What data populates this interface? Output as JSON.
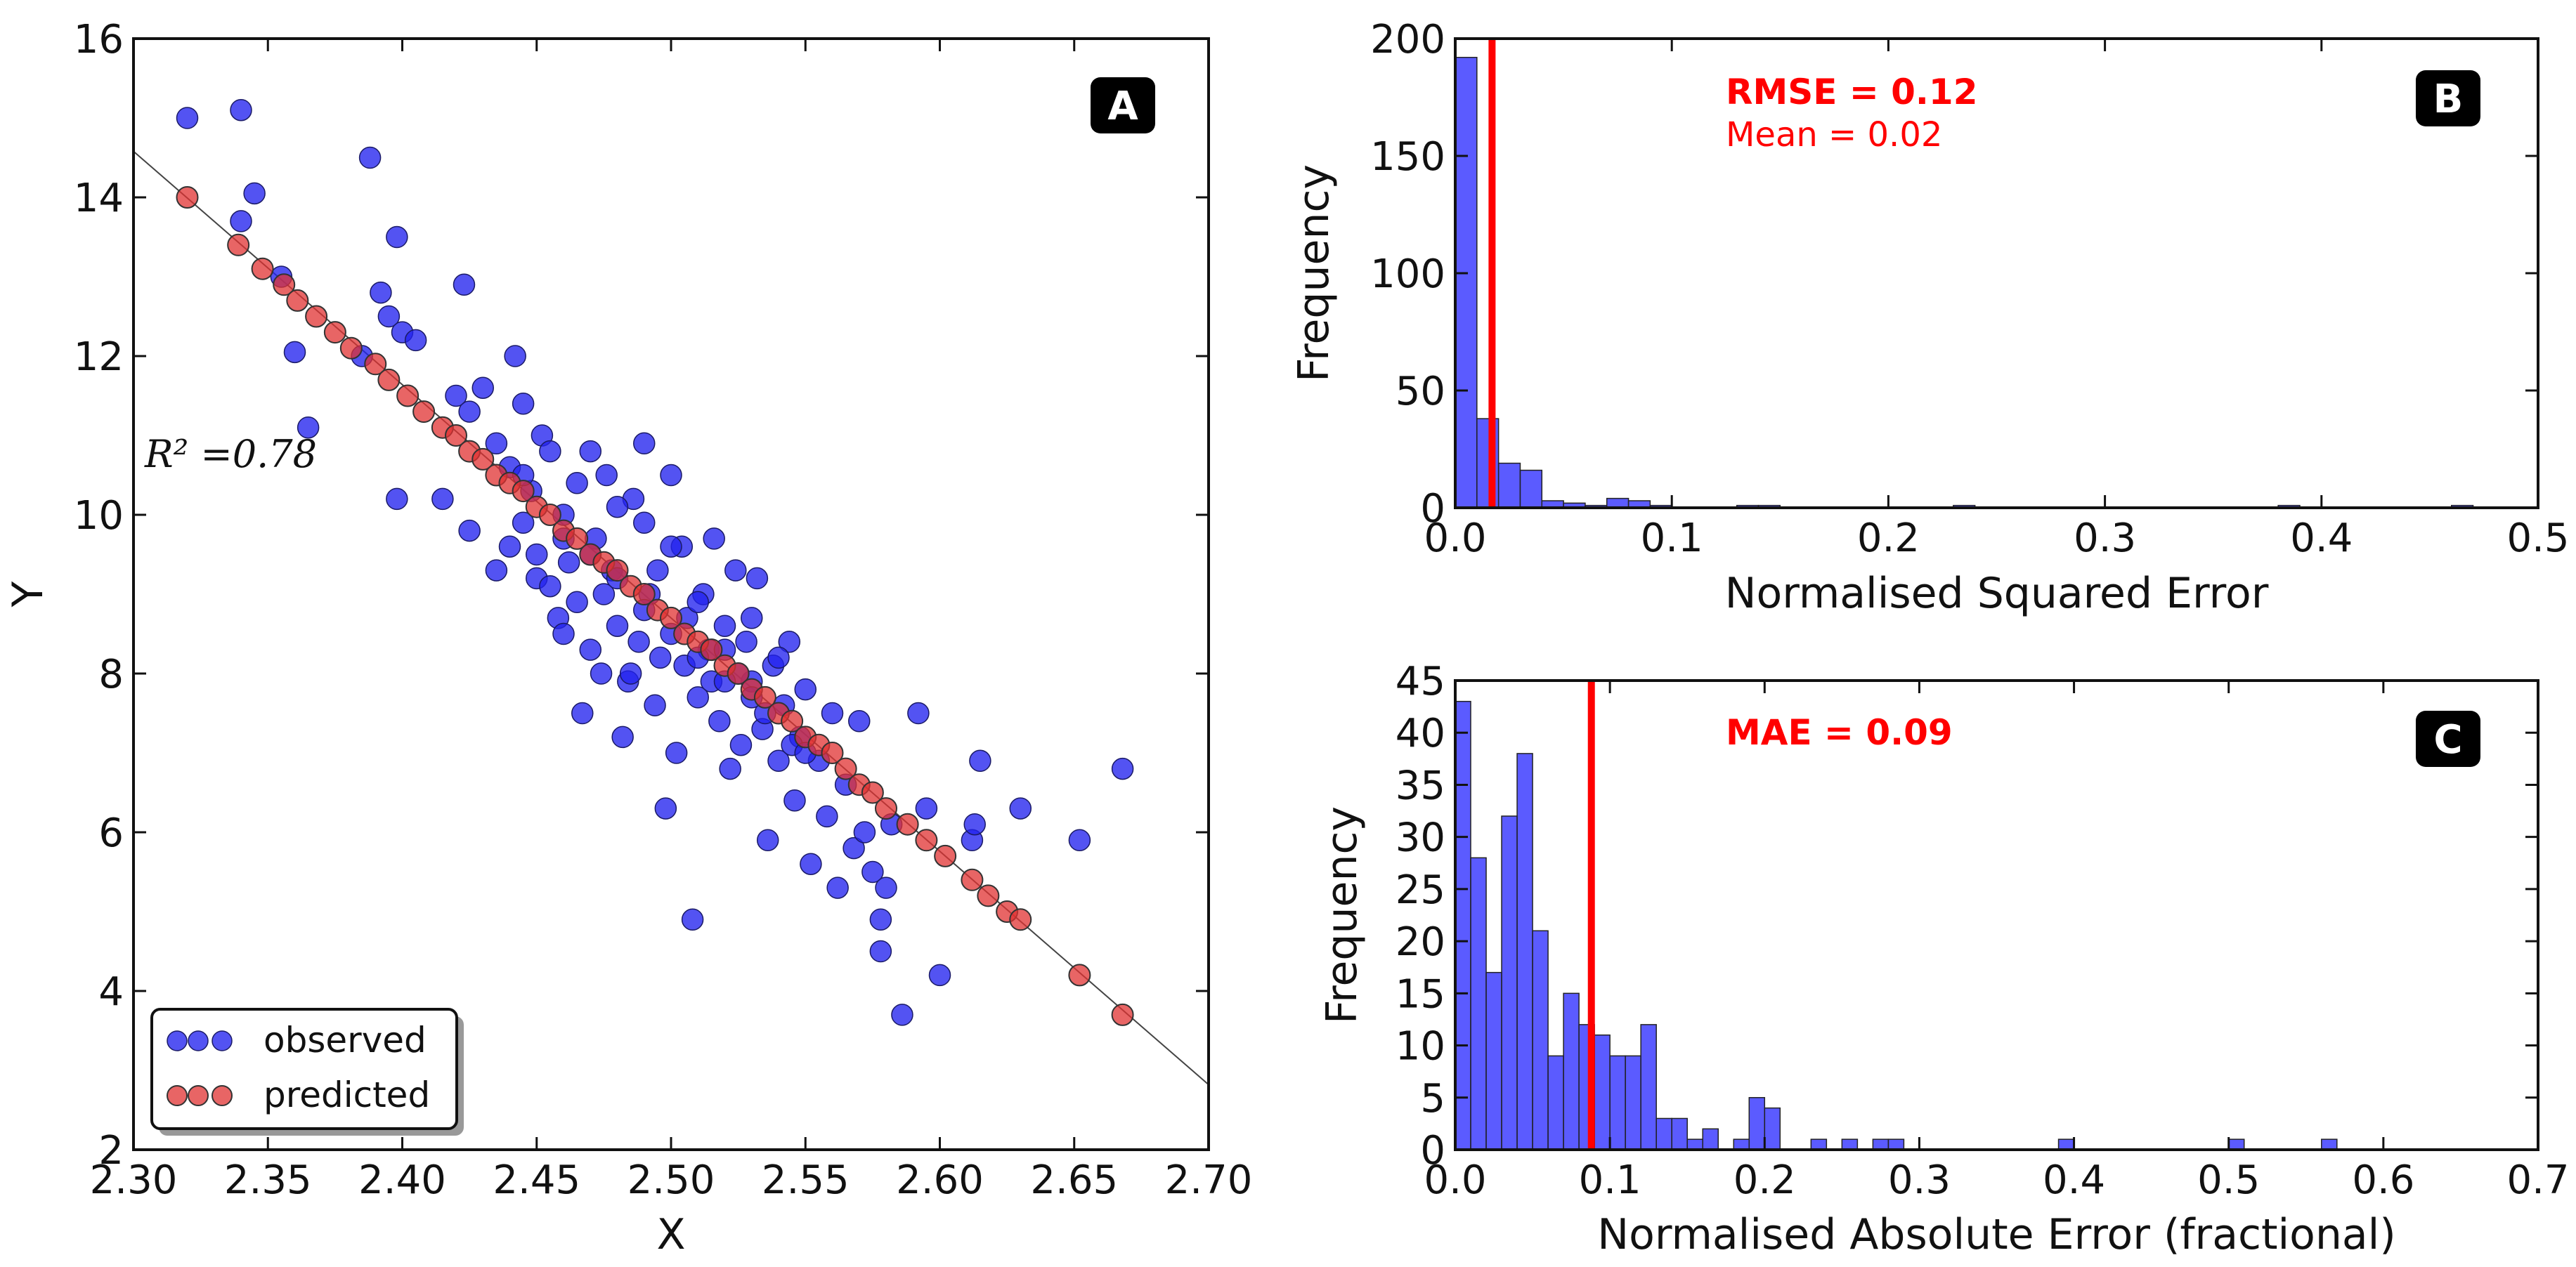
{
  "chart_data": [
    {
      "panel": "A",
      "type": "scatter",
      "xlabel": "X",
      "ylabel": "Y",
      "xlim": [
        2.3,
        2.7
      ],
      "ylim": [
        2,
        16
      ],
      "xticks": [
        "2.30",
        "2.35",
        "2.40",
        "2.45",
        "2.50",
        "2.55",
        "2.60",
        "2.65",
        "2.70"
      ],
      "yticks": [
        "2",
        "4",
        "6",
        "8",
        "10",
        "12",
        "14",
        "16"
      ],
      "r2_annotation": "R² =0.78",
      "legend": {
        "position": "bottom-left",
        "entries": [
          "observed",
          "predicted"
        ]
      },
      "fit_line": {
        "slope": -29.4,
        "intercept": 82.2
      },
      "series": [
        {
          "name": "observed",
          "color": "#2323ee",
          "points": [
            [
              2.32,
              15.0
            ],
            [
              2.34,
              15.1
            ],
            [
              2.345,
              14.05
            ],
            [
              2.34,
              13.7
            ],
            [
              2.355,
              13.0
            ],
            [
              2.36,
              12.05
            ],
            [
              2.365,
              11.1
            ],
            [
              2.385,
              12.0
            ],
            [
              2.388,
              14.5
            ],
            [
              2.392,
              12.8
            ],
            [
              2.395,
              12.5
            ],
            [
              2.398,
              13.5
            ],
            [
              2.4,
              12.3
            ],
            [
              2.405,
              12.2
            ],
            [
              2.398,
              10.2
            ],
            [
              2.415,
              10.2
            ],
            [
              2.42,
              11.5
            ],
            [
              2.423,
              12.9
            ],
            [
              2.425,
              11.3
            ],
            [
              2.43,
              11.6
            ],
            [
              2.425,
              9.8
            ],
            [
              2.435,
              9.3
            ],
            [
              2.44,
              10.6
            ],
            [
              2.442,
              12.0
            ],
            [
              2.445,
              11.4
            ],
            [
              2.448,
              10.3
            ],
            [
              2.45,
              9.2
            ],
            [
              2.452,
              11.0
            ],
            [
              2.455,
              10.8
            ],
            [
              2.458,
              8.7
            ],
            [
              2.46,
              10.0
            ],
            [
              2.462,
              9.4
            ],
            [
              2.465,
              10.4
            ],
            [
              2.467,
              7.5
            ],
            [
              2.47,
              10.8
            ],
            [
              2.472,
              9.7
            ],
            [
              2.474,
              8.0
            ],
            [
              2.476,
              10.5
            ],
            [
              2.478,
              9.3
            ],
            [
              2.48,
              8.6
            ],
            [
              2.482,
              7.2
            ],
            [
              2.484,
              7.9
            ],
            [
              2.486,
              10.2
            ],
            [
              2.488,
              8.4
            ],
            [
              2.49,
              10.9
            ],
            [
              2.492,
              9.0
            ],
            [
              2.494,
              7.6
            ],
            [
              2.496,
              8.2
            ],
            [
              2.498,
              6.3
            ],
            [
              2.5,
              10.5
            ],
            [
              2.502,
              7.0
            ],
            [
              2.504,
              9.6
            ],
            [
              2.506,
              8.7
            ],
            [
              2.508,
              4.9
            ],
            [
              2.51,
              7.7
            ],
            [
              2.512,
              9.0
            ],
            [
              2.514,
              8.3
            ],
            [
              2.516,
              9.7
            ],
            [
              2.518,
              7.4
            ],
            [
              2.52,
              8.6
            ],
            [
              2.522,
              6.8
            ],
            [
              2.524,
              9.3
            ],
            [
              2.526,
              7.1
            ],
            [
              2.528,
              8.4
            ],
            [
              2.53,
              7.9
            ],
            [
              2.532,
              9.2
            ],
            [
              2.534,
              7.3
            ],
            [
              2.536,
              5.9
            ],
            [
              2.538,
              8.1
            ],
            [
              2.54,
              6.9
            ],
            [
              2.542,
              7.6
            ],
            [
              2.544,
              8.4
            ],
            [
              2.546,
              6.4
            ],
            [
              2.548,
              7.2
            ],
            [
              2.55,
              7.8
            ],
            [
              2.552,
              5.6
            ],
            [
              2.555,
              6.9
            ],
            [
              2.558,
              6.2
            ],
            [
              2.56,
              7.5
            ],
            [
              2.562,
              5.3
            ],
            [
              2.565,
              6.6
            ],
            [
              2.568,
              5.8
            ],
            [
              2.57,
              7.4
            ],
            [
              2.572,
              6.0
            ],
            [
              2.575,
              5.5
            ],
            [
              2.578,
              4.9
            ],
            [
              2.578,
              4.5
            ],
            [
              2.58,
              5.3
            ],
            [
              2.582,
              6.1
            ],
            [
              2.586,
              3.7
            ],
            [
              2.592,
              7.5
            ],
            [
              2.595,
              6.3
            ],
            [
              2.6,
              4.2
            ],
            [
              2.612,
              5.9
            ],
            [
              2.615,
              6.9
            ],
            [
              2.613,
              6.1
            ],
            [
              2.63,
              6.3
            ],
            [
              2.652,
              5.9
            ],
            [
              2.668,
              6.8
            ],
            [
              2.445,
              9.9
            ],
            [
              2.455,
              9.1
            ],
            [
              2.465,
              8.9
            ],
            [
              2.475,
              9.0
            ],
            [
              2.485,
              8.0
            ],
            [
              2.495,
              9.3
            ],
            [
              2.505,
              8.1
            ],
            [
              2.515,
              7.9
            ],
            [
              2.525,
              8.0
            ],
            [
              2.535,
              7.5
            ],
            [
              2.545,
              7.1
            ],
            [
              2.435,
              10.9
            ],
            [
              2.445,
              10.5
            ],
            [
              2.46,
              9.7
            ],
            [
              2.47,
              9.5
            ],
            [
              2.48,
              9.2
            ],
            [
              2.49,
              8.8
            ],
            [
              2.5,
              8.5
            ],
            [
              2.51,
              8.2
            ],
            [
              2.52,
              7.9
            ],
            [
              2.53,
              7.7
            ],
            [
              2.44,
              9.6
            ],
            [
              2.45,
              9.5
            ],
            [
              2.46,
              8.5
            ],
            [
              2.47,
              8.3
            ],
            [
              2.48,
              10.1
            ],
            [
              2.49,
              9.9
            ],
            [
              2.5,
              9.6
            ],
            [
              2.51,
              8.9
            ],
            [
              2.52,
              8.3
            ],
            [
              2.53,
              8.7
            ],
            [
              2.54,
              8.2
            ],
            [
              2.55,
              7.0
            ]
          ]
        },
        {
          "name": "predicted",
          "color": "#e03232",
          "points": [
            [
              2.32,
              14.0
            ],
            [
              2.339,
              13.4
            ],
            [
              2.348,
              13.1
            ],
            [
              2.356,
              12.9
            ],
            [
              2.361,
              12.7
            ],
            [
              2.368,
              12.5
            ],
            [
              2.375,
              12.3
            ],
            [
              2.381,
              12.1
            ],
            [
              2.39,
              11.9
            ],
            [
              2.395,
              11.7
            ],
            [
              2.402,
              11.5
            ],
            [
              2.408,
              11.3
            ],
            [
              2.415,
              11.1
            ],
            [
              2.42,
              11.0
            ],
            [
              2.425,
              10.8
            ],
            [
              2.43,
              10.7
            ],
            [
              2.435,
              10.5
            ],
            [
              2.44,
              10.4
            ],
            [
              2.445,
              10.3
            ],
            [
              2.45,
              10.1
            ],
            [
              2.455,
              10.0
            ],
            [
              2.46,
              9.8
            ],
            [
              2.465,
              9.7
            ],
            [
              2.47,
              9.5
            ],
            [
              2.475,
              9.4
            ],
            [
              2.48,
              9.3
            ],
            [
              2.485,
              9.1
            ],
            [
              2.49,
              9.0
            ],
            [
              2.495,
              8.8
            ],
            [
              2.5,
              8.7
            ],
            [
              2.505,
              8.5
            ],
            [
              2.51,
              8.4
            ],
            [
              2.515,
              8.3
            ],
            [
              2.52,
              8.1
            ],
            [
              2.525,
              8.0
            ],
            [
              2.53,
              7.8
            ],
            [
              2.535,
              7.7
            ],
            [
              2.54,
              7.5
            ],
            [
              2.545,
              7.4
            ],
            [
              2.55,
              7.2
            ],
            [
              2.555,
              7.1
            ],
            [
              2.56,
              7.0
            ],
            [
              2.565,
              6.8
            ],
            [
              2.57,
              6.6
            ],
            [
              2.575,
              6.5
            ],
            [
              2.58,
              6.3
            ],
            [
              2.588,
              6.1
            ],
            [
              2.595,
              5.9
            ],
            [
              2.602,
              5.7
            ],
            [
              2.612,
              5.4
            ],
            [
              2.618,
              5.2
            ],
            [
              2.625,
              5.0
            ],
            [
              2.63,
              4.9
            ],
            [
              2.652,
              4.2
            ],
            [
              2.668,
              3.7
            ]
          ]
        }
      ]
    },
    {
      "panel": "B",
      "type": "bar",
      "xlabel": "Normalised Squared Error",
      "ylabel": "Frequency",
      "xlim": [
        0.0,
        0.5
      ],
      "ylim": [
        0,
        200
      ],
      "xticks": [
        "0.0",
        "0.1",
        "0.2",
        "0.3",
        "0.4",
        "0.5"
      ],
      "yticks": [
        "0",
        "50",
        "100",
        "150",
        "200"
      ],
      "bin_width": 0.01,
      "bins_start": [
        0.0,
        0.01,
        0.02,
        0.03,
        0.04,
        0.05,
        0.06,
        0.07,
        0.08,
        0.09,
        0.13,
        0.14,
        0.23,
        0.38,
        0.46
      ],
      "values": [
        192,
        38,
        19,
        16,
        3,
        2,
        1,
        4,
        3,
        1,
        1,
        1,
        1,
        1,
        1
      ],
      "vline": {
        "x": 0.017,
        "color": "#ff0000"
      },
      "annotations": {
        "rmse": "RMSE = 0.12",
        "mean": "Mean = 0.02"
      },
      "label": "B"
    },
    {
      "panel": "C",
      "type": "bar",
      "xlabel": "Normalised Absolute Error (fractional)",
      "ylabel": "Frequency",
      "xlim": [
        0.0,
        0.7
      ],
      "ylim": [
        0,
        45
      ],
      "xticks": [
        "0.0",
        "0.1",
        "0.2",
        "0.3",
        "0.4",
        "0.5",
        "0.6",
        "0.7"
      ],
      "yticks": [
        "0",
        "5",
        "10",
        "15",
        "20",
        "25",
        "30",
        "35",
        "40",
        "45"
      ],
      "bin_width": 0.01,
      "values": [
        43,
        28,
        17,
        32,
        38,
        21,
        9,
        15,
        12,
        11,
        9,
        9,
        12,
        3,
        3,
        1,
        2,
        0,
        1,
        5,
        4,
        0,
        0,
        1,
        0,
        1,
        0,
        1,
        1,
        0,
        0,
        0,
        0,
        0,
        0,
        0,
        0,
        0,
        0,
        1,
        0,
        0,
        0,
        0,
        0,
        0,
        0,
        0,
        0,
        0,
        1,
        0,
        0,
        0,
        0,
        0,
        1
      ],
      "bins_start": [
        0.0,
        0.01,
        0.02,
        0.03,
        0.04,
        0.05,
        0.06,
        0.07,
        0.08,
        0.09,
        0.1,
        0.11,
        0.12,
        0.13,
        0.14,
        0.15,
        0.16,
        0.17,
        0.18,
        0.19,
        0.2,
        0.21,
        0.22,
        0.23,
        0.24,
        0.25,
        0.26,
        0.27,
        0.28,
        0.29,
        0.3,
        0.31,
        0.32,
        0.33,
        0.34,
        0.35,
        0.36,
        0.37,
        0.38,
        0.39,
        0.4,
        0.41,
        0.42,
        0.43,
        0.44,
        0.45,
        0.46,
        0.47,
        0.48,
        0.49,
        0.5,
        0.51,
        0.52,
        0.53,
        0.54,
        0.55,
        0.56
      ],
      "vline": {
        "x": 0.088,
        "color": "#ff0000"
      },
      "annotations": {
        "mae": "MAE = 0.09"
      },
      "label": "C"
    }
  ]
}
